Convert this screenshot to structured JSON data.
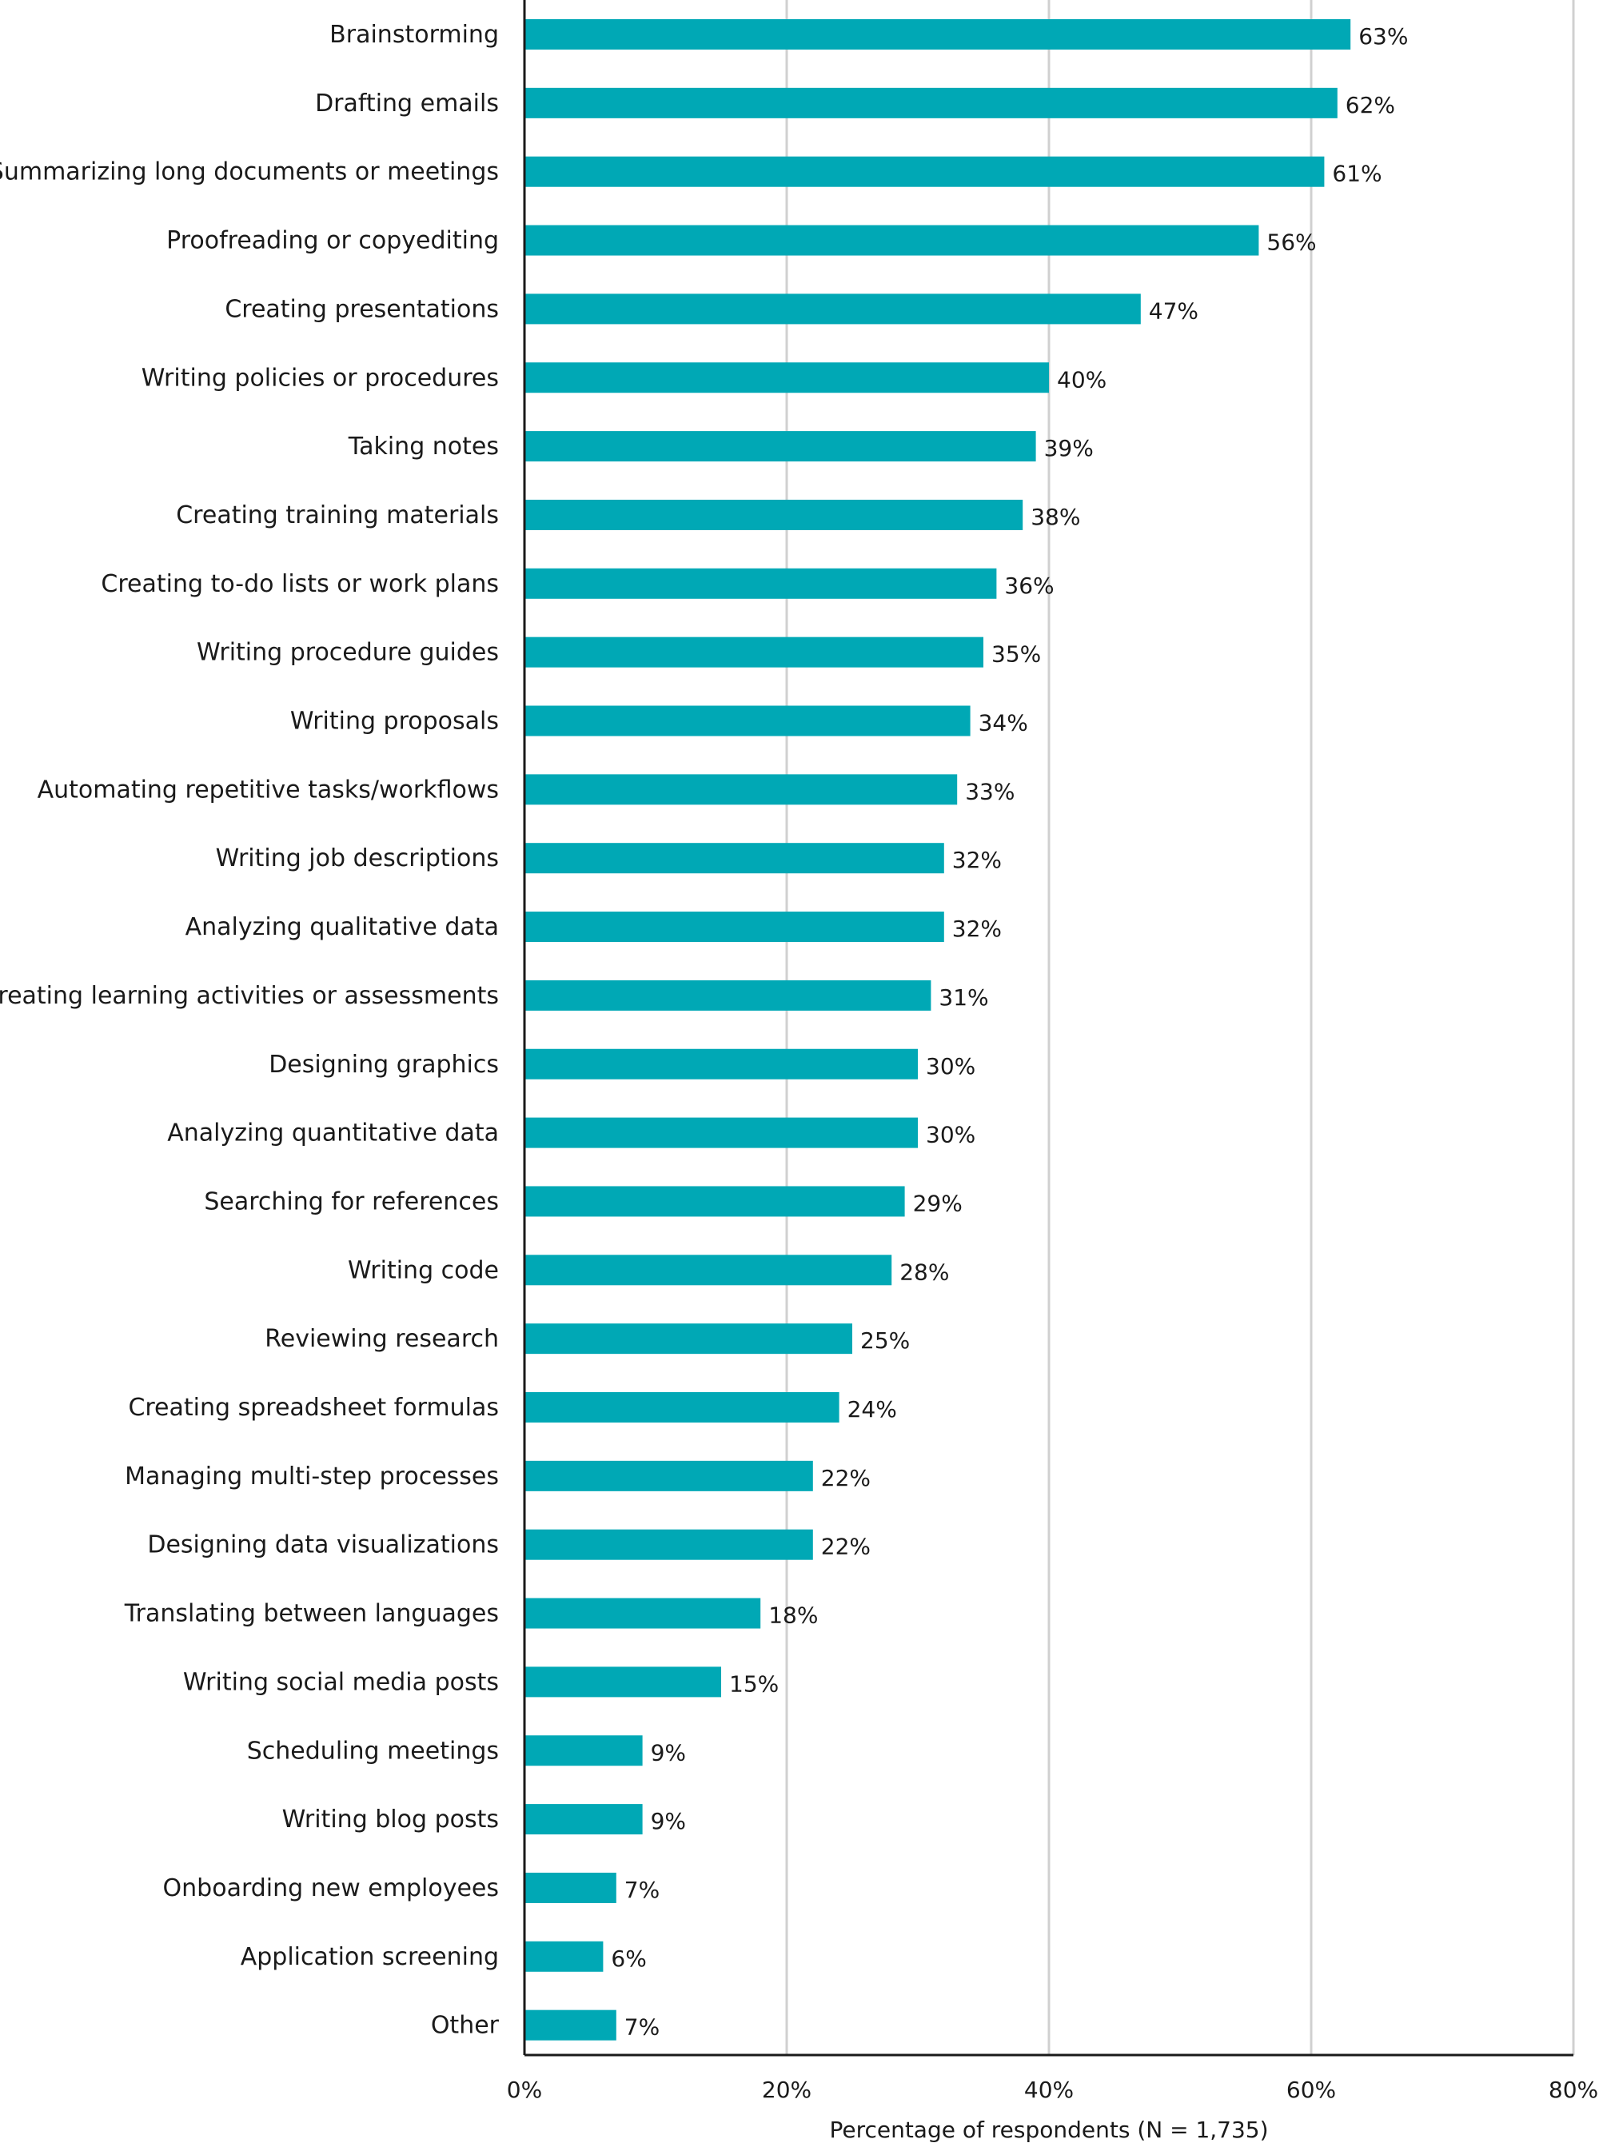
{
  "chart_data": {
    "type": "bar",
    "orientation": "horizontal",
    "bar_color": "#00a8b5",
    "categories": [
      "Brainstorming",
      "Drafting emails",
      "Summarizing long documents or meetings",
      "Proofreading or copyediting",
      "Creating presentations",
      "Writing policies or procedures",
      "Taking notes",
      "Creating training materials",
      "Creating to-do lists or work plans",
      "Writing procedure guides",
      "Writing proposals",
      "Automating repetitive tasks/workflows",
      "Writing job descriptions",
      "Analyzing qualitative data",
      "Creating learning activities or assessments",
      "Designing graphics",
      "Analyzing quantitative data",
      "Searching for references",
      "Writing code",
      "Reviewing research",
      "Creating spreadsheet formulas",
      "Managing multi-step processes",
      "Designing data visualizations",
      "Translating between languages",
      "Writing social media posts",
      "Scheduling meetings",
      "Writing blog posts",
      "Onboarding new employees",
      "Application screening",
      "Other"
    ],
    "values": [
      63,
      62,
      61,
      56,
      47,
      40,
      39,
      38,
      36,
      35,
      34,
      33,
      32,
      32,
      31,
      30,
      30,
      29,
      28,
      25,
      24,
      22,
      22,
      18,
      15,
      9,
      9,
      7,
      6,
      7
    ],
    "value_labels": [
      "63%",
      "62%",
      "61%",
      "56%",
      "47%",
      "40%",
      "39%",
      "38%",
      "36%",
      "35%",
      "34%",
      "33%",
      "32%",
      "32%",
      "31%",
      "30%",
      "30%",
      "29%",
      "28%",
      "25%",
      "24%",
      "22%",
      "22%",
      "18%",
      "15%",
      "9%",
      "9%",
      "7%",
      "6%",
      "7%"
    ],
    "xlim": [
      0,
      80
    ],
    "x_ticks": [
      0,
      20,
      40,
      60,
      80
    ],
    "x_tick_labels": [
      "0%",
      "20%",
      "40%",
      "60%",
      "80%"
    ],
    "xlabel": "Percentage of respondents (N = 1,735)",
    "ylabel": "",
    "title": "",
    "grid": "vertical"
  }
}
